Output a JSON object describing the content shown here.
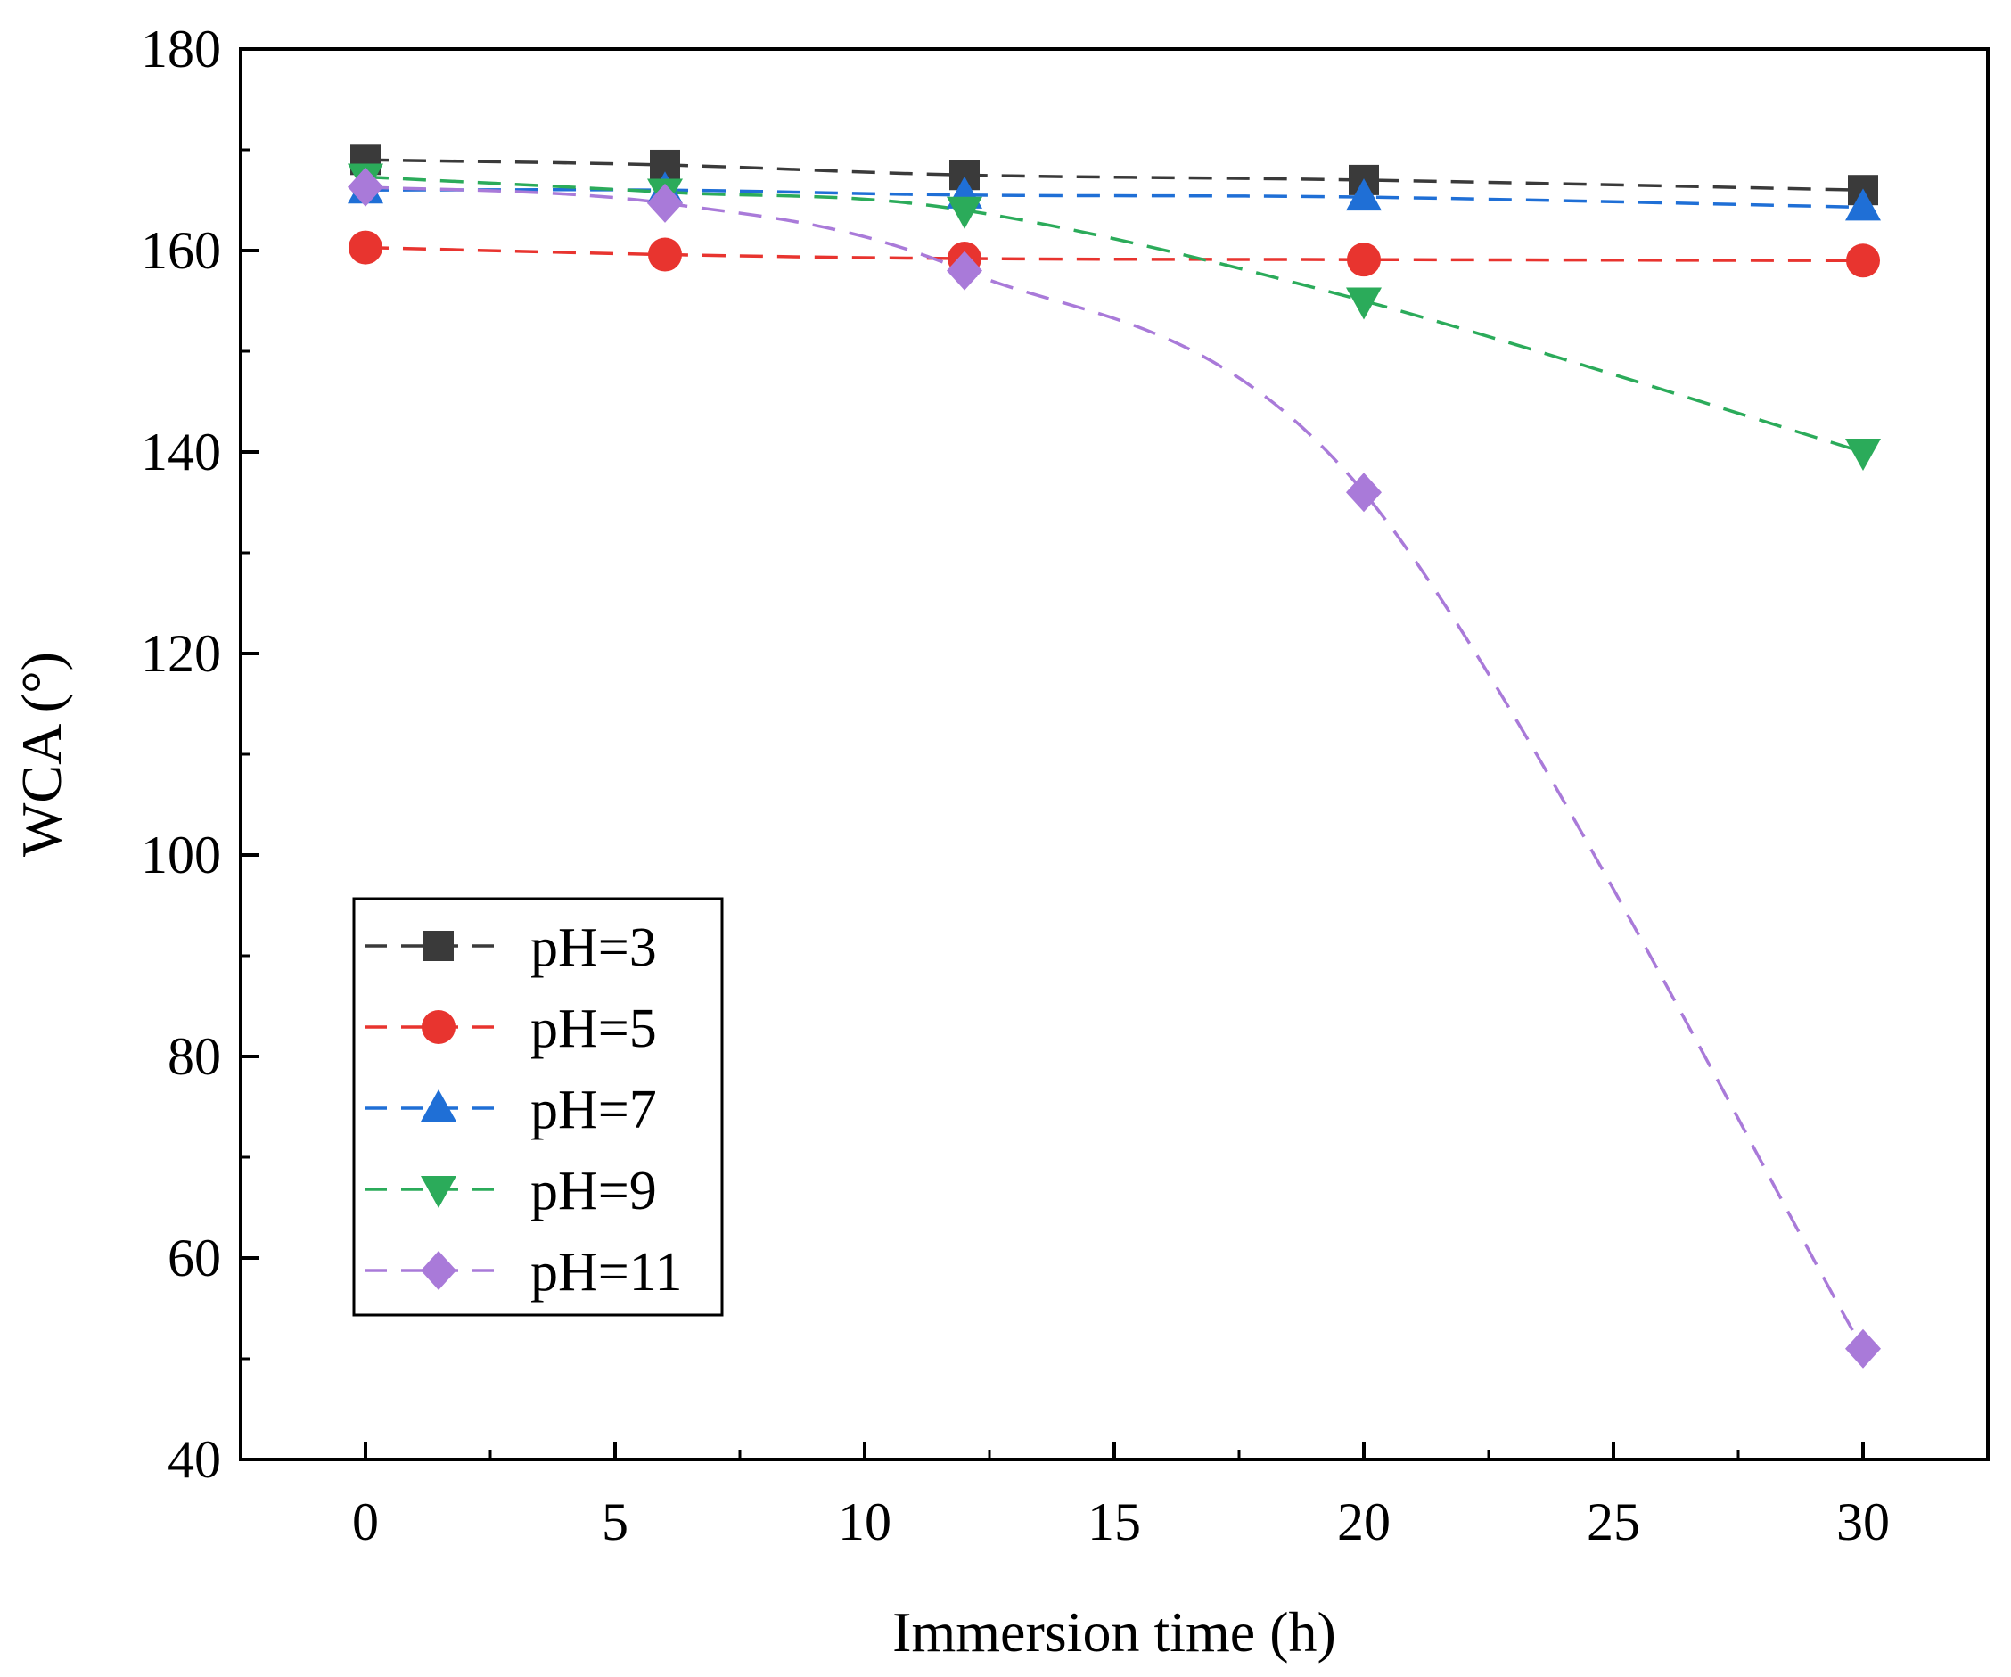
{
  "chart_data": {
    "type": "line",
    "title": "",
    "xlabel": "Immersion time (h)",
    "ylabel": "WCA (°)",
    "xlim": [
      -2.5,
      32.5
    ],
    "ylim": [
      40,
      180
    ],
    "xticks": [
      0,
      5,
      10,
      15,
      20,
      25,
      30
    ],
    "yticks": [
      40,
      60,
      80,
      100,
      120,
      140,
      160,
      180
    ],
    "grid": false,
    "legend_position": "lower-left",
    "x": [
      0,
      6,
      12,
      20,
      30
    ],
    "series": [
      {
        "name": "pH=3",
        "values": [
          169,
          168.5,
          167.5,
          167,
          166
        ],
        "marker": "square",
        "color": "#3a3a3a"
      },
      {
        "name": "pH=5",
        "values": [
          160.3,
          159.6,
          159.2,
          159.1,
          159
        ],
        "marker": "circle",
        "color": "#e8342f"
      },
      {
        "name": "pH=7",
        "values": [
          166,
          166,
          165.5,
          165.3,
          164.3
        ],
        "marker": "triangle-up",
        "color": "#1f6fd6"
      },
      {
        "name": "pH=9",
        "values": [
          167.3,
          165.8,
          164,
          155,
          140
        ],
        "marker": "triangle-down",
        "color": "#2bab5a"
      },
      {
        "name": "pH=11",
        "values": [
          166.3,
          164.7,
          158,
          136,
          51
        ],
        "marker": "diamond",
        "color": "#a97ad9"
      }
    ]
  }
}
